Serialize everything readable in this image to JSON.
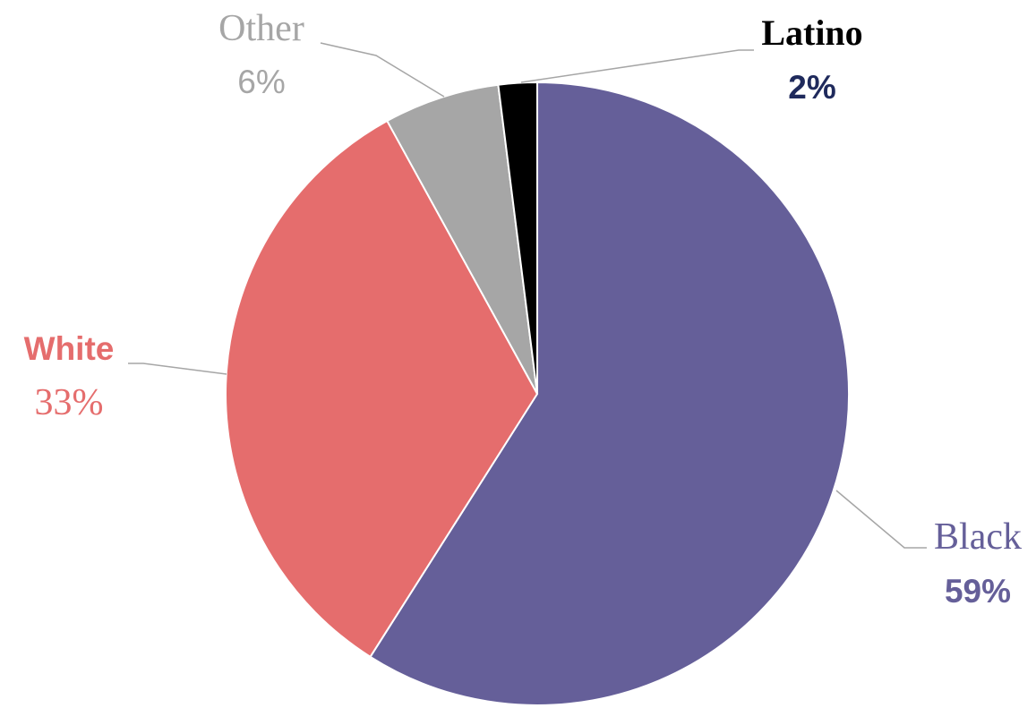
{
  "chart_data": {
    "type": "pie",
    "title": "",
    "slices": [
      {
        "label": "Black",
        "value": 59,
        "value_label": "59%",
        "color": "#655f99",
        "label_color": "#655f99",
        "value_color": "#655f99"
      },
      {
        "label": "White",
        "value": 33,
        "value_label": "33%",
        "color": "#e56d6d",
        "label_color": "#e56d6d",
        "value_color": "#e56d6d"
      },
      {
        "label": "Other",
        "value": 6,
        "value_label": "6%",
        "color": "#a6a6a6",
        "label_color": "#a6a6a6",
        "value_color": "#a6a6a6"
      },
      {
        "label": "Latino",
        "value": 2,
        "value_label": "2%",
        "color": "#000000",
        "label_color": "#000000",
        "value_color": "#1f2a5c"
      }
    ],
    "start": "12 o'clock",
    "direction": "clockwise",
    "legend": "none",
    "data_labels": "outside with leader lines"
  }
}
